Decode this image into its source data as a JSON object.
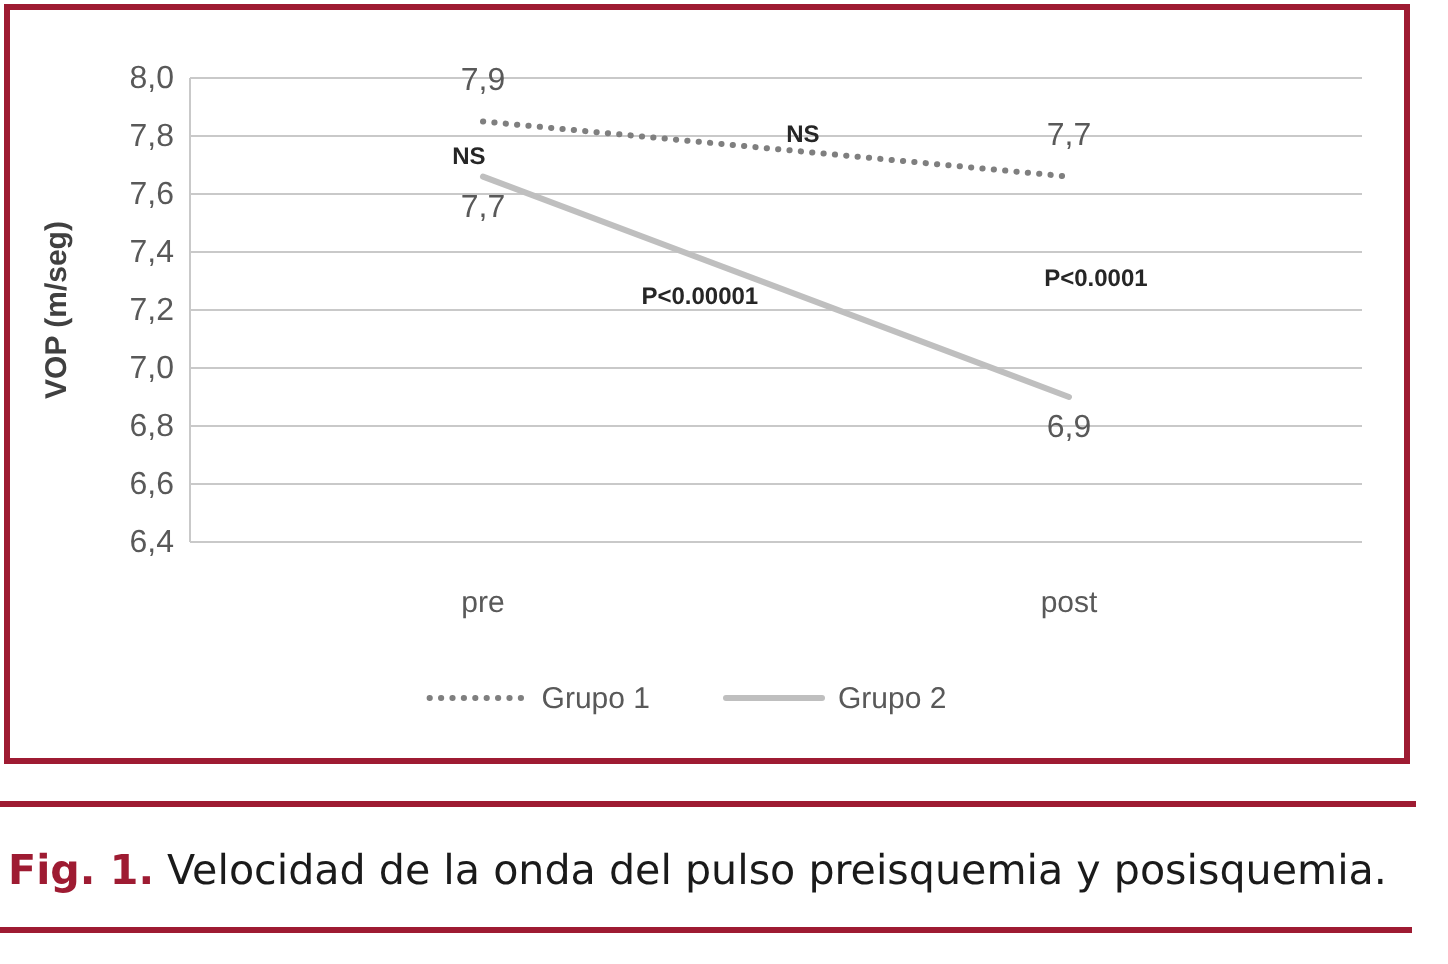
{
  "chart_data": {
    "type": "line",
    "ylabel": "VOP (m/seg)",
    "categories": [
      "pre",
      "post"
    ],
    "series": [
      {
        "name": "Grupo 1",
        "color": "#7f7f7f",
        "line_style": "dotted",
        "values": [
          7.85,
          7.66
        ],
        "value_labels": [
          "7,9",
          "7,7"
        ]
      },
      {
        "name": "Grupo 2",
        "color": "#bfbfbf",
        "line_style": "solid",
        "values": [
          7.66,
          6.9
        ],
        "value_labels": [
          "7,7",
          "6,9"
        ]
      }
    ],
    "ylim": [
      6.4,
      8.0
    ],
    "yticks": [
      {
        "value": 6.4,
        "label": "6,4"
      },
      {
        "value": 6.6,
        "label": "6,6"
      },
      {
        "value": 6.8,
        "label": "6,8"
      },
      {
        "value": 7.0,
        "label": "7,0"
      },
      {
        "value": 7.2,
        "label": "7,2"
      },
      {
        "value": 7.4,
        "label": "7,4"
      },
      {
        "value": 7.6,
        "label": "7,6"
      },
      {
        "value": 7.8,
        "label": "7,8"
      },
      {
        "value": 8.0,
        "label": "8,0"
      }
    ],
    "grid": "y",
    "legend": "bottom",
    "annotations": [
      "NS",
      "NS",
      "P<0.00001",
      "P<0.0001",
      "Fig. 1.",
      "Velocidad de la onda del pulso preisquemia y posisquemia."
    ]
  }
}
